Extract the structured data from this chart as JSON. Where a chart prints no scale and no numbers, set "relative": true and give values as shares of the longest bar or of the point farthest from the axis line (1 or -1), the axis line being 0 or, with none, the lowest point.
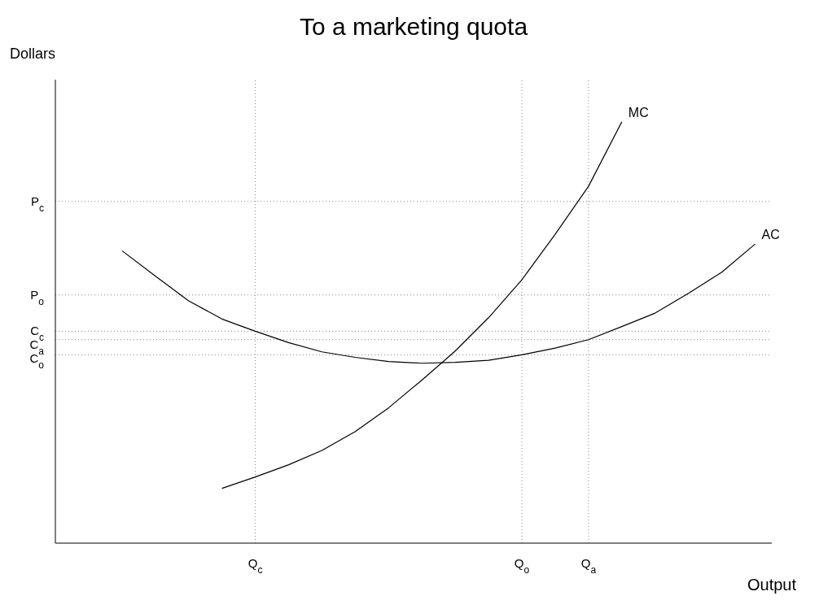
{
  "chart_data": {
    "type": "line",
    "title": "To a marketing quota",
    "xlabel": "Output",
    "ylabel": "Dollars",
    "relative": true,
    "tick_labels": "x",
    "grid": "x",
    "legend": false,
    "marker": "none",
    "line_style": "solid",
    "categories": [
      null,
      null,
      null,
      null,
      null,
      null,
      "Q$_{c}$",
      null,
      null,
      null,
      null,
      null,
      null,
      null,
      "Q$_{o}$",
      null,
      "Q$_{a}$",
      null,
      null,
      null,
      null,
      null
    ],
    "series": [
      {
        "name": "MC",
        "color": "#000000",
        "values": [
          null,
          null,
          null,
          null,
          null,
          0.13,
          0.157,
          0.186,
          0.22,
          0.265,
          0.321,
          0.387,
          0.456,
          0.535,
          0.625,
          0.733,
          0.847,
          1,
          null,
          null,
          null,
          null
        ]
      },
      {
        "name": "AC",
        "color": "#000000",
        "values": [
          null,
          null,
          0.694,
          0.634,
          0.575,
          0.532,
          0.503,
          0.476,
          0.454,
          0.441,
          0.431,
          0.427,
          0.429,
          0.434,
          0.447,
          0.463,
          0.483,
          0.514,
          0.546,
          0.593,
          0.643,
          0.71
        ]
      }
    ],
    "ref_lines": [
      {
        "axis": "y",
        "value": 0.811,
        "label": "P$_{c}$",
        "color": "#888888",
        "line_style": "dotted"
      },
      {
        "axis": "y",
        "value": 0.589,
        "label": "P$_{o}$",
        "color": "#888888",
        "line_style": "dotted"
      },
      {
        "axis": "y",
        "value": 0.503,
        "label": "C$_{c}$",
        "color": "#888888",
        "line_style": "dotted"
      },
      {
        "axis": "y",
        "value": 0.483,
        "label": "C$_{a}$",
        "color": "#888888",
        "line_style": "dotted"
      },
      {
        "axis": "y",
        "value": 0.447,
        "label": "C$_{o}$",
        "color": "#888888",
        "line_style": "dotted"
      }
    ]
  }
}
